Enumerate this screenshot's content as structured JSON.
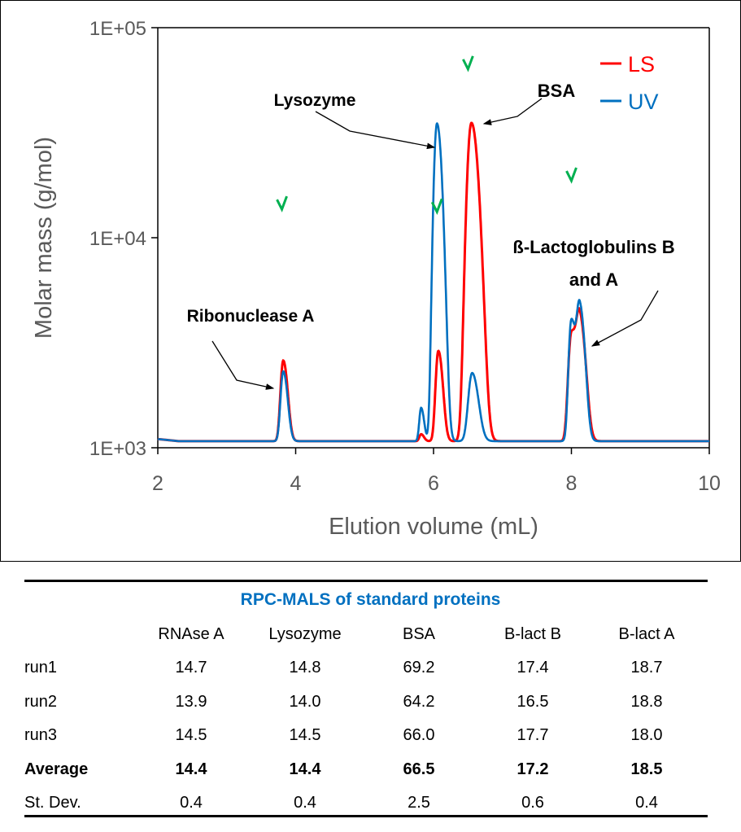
{
  "chart_data": {
    "type": "line",
    "xlabel": "Elution volume (mL)",
    "ylabel": "Molar mass (g/mol)",
    "xlim": [
      2,
      10
    ],
    "ylim": [
      1000,
      100000
    ],
    "yscale": "log",
    "xticks": [
      "2",
      "4",
      "6",
      "8",
      "10"
    ],
    "yticks": [
      "1E+03",
      "1E+04",
      "1E+05"
    ],
    "grid": false,
    "legend": {
      "position": "top-right",
      "entries": [
        "LS",
        "UV"
      ]
    },
    "baseline": 1075,
    "series": [
      {
        "name": "LS",
        "color": "#FF0000",
        "peaks": [
          {
            "x": 3.82,
            "y": 2600,
            "sigma": 0.035
          },
          {
            "x": 5.82,
            "y": 1160,
            "sigma": 0.025
          },
          {
            "x": 6.07,
            "y": 2890,
            "sigma": 0.035
          },
          {
            "x": 6.55,
            "y": 35200,
            "sigma": 0.055
          },
          {
            "x": 8.0,
            "y": 3500,
            "sigma": 0.04
          },
          {
            "x": 8.12,
            "y": 4130,
            "sigma": 0.045
          }
        ]
      },
      {
        "name": "UV",
        "color": "#0070C0",
        "peaks": [
          {
            "x": 3.82,
            "y": 2310,
            "sigma": 0.035
          },
          {
            "x": 5.82,
            "y": 1550,
            "sigma": 0.025
          },
          {
            "x": 6.05,
            "y": 35000,
            "sigma": 0.04
          },
          {
            "x": 6.56,
            "y": 2270,
            "sigma": 0.05
          },
          {
            "x": 8.0,
            "y": 4060,
            "sigma": 0.035
          },
          {
            "x": 8.12,
            "y": 4720,
            "sigma": 0.04
          }
        ]
      },
      {
        "color": "#00B050",
        "type": "scatter",
        "points": [
          {
            "x": 3.8,
            "y": 14400
          },
          {
            "x": 6.05,
            "y": 14000
          },
          {
            "x": 6.5,
            "y": 67000
          },
          {
            "x": 8.0,
            "y": 19700
          }
        ]
      }
    ],
    "annotations": [
      {
        "text": "Ribonuclease A"
      },
      {
        "text": "Lysozyme"
      },
      {
        "text": "BSA"
      },
      {
        "text": "ß-Lactoglobulins B",
        "text2": "and A"
      }
    ]
  },
  "table": {
    "title": "RPC-MALS of standard proteins",
    "columns": [
      "RNAse A",
      "Lysozyme",
      "BSA",
      "B-lact B",
      "B-lact A"
    ],
    "rows": [
      {
        "label": "run1",
        "values": [
          "14.7",
          "14.8",
          "69.2",
          "17.4",
          "18.7"
        ]
      },
      {
        "label": "run2",
        "values": [
          "13.9",
          "14.0",
          "64.2",
          "16.5",
          "18.8"
        ]
      },
      {
        "label": "run3",
        "values": [
          "14.5",
          "14.5",
          "66.0",
          "17.7",
          "18.0"
        ]
      },
      {
        "label": "Average",
        "values": [
          "14.4",
          "14.4",
          "66.5",
          "17.2",
          "18.5"
        ]
      },
      {
        "label": "St. Dev.",
        "values": [
          "0.4",
          "0.4",
          "2.5",
          "0.6",
          "0.4"
        ]
      }
    ]
  }
}
